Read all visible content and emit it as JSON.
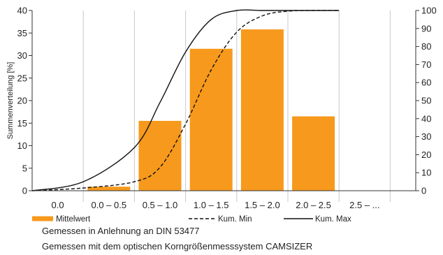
{
  "chart_data": {
    "type": "bar",
    "ylabel": "Summenverteilung [%]",
    "categories": [
      "0.0",
      "0.0 – 0.5",
      "0.5 – 1.0",
      "1.0 – 1.5",
      "1.5 – 2.0",
      "2.0 – 2.5",
      "2.5 – ..."
    ],
    "ylim_left": [
      0,
      40
    ],
    "left_ticks": [
      0,
      5,
      10,
      15,
      20,
      25,
      30,
      35,
      40
    ],
    "ylim_right": [
      0,
      100
    ],
    "right_ticks": [
      0,
      10,
      20,
      30,
      40,
      50,
      60,
      70,
      80,
      90,
      100
    ],
    "grid": "vertical",
    "legend_position": "bottom",
    "series": [
      {
        "name": "Mittelwert",
        "type": "bar",
        "color": "#F7991C",
        "values": [
          0,
          0.9,
          15.5,
          31.5,
          35.8,
          16.5,
          0
        ]
      },
      {
        "name": "Kum. Min",
        "type": "line",
        "style": "dashed",
        "axis": "right",
        "x": [
          0.0,
          0.5,
          1.0,
          1.25,
          1.5,
          1.75,
          2.0,
          2.25,
          2.5,
          2.75,
          3.0
        ],
        "y": [
          0,
          1.5,
          5,
          13,
          37,
          67,
          88,
          97,
          99.6,
          100,
          100
        ]
      },
      {
        "name": "Kum. Max",
        "type": "line",
        "style": "solid",
        "axis": "right",
        "x": [
          0.0,
          0.5,
          1.0,
          1.25,
          1.5,
          1.75,
          2.0,
          2.25,
          2.5,
          2.75,
          3.0
        ],
        "y": [
          0,
          5,
          24,
          49,
          77,
          95,
          100,
          100,
          100,
          100,
          100
        ]
      }
    ]
  },
  "notes": [
    "Gemessen in Anlehnung an DIN 53477",
    "Gemessen mit dem optischen Korngrößenmesssystem CAMSIZER"
  ]
}
